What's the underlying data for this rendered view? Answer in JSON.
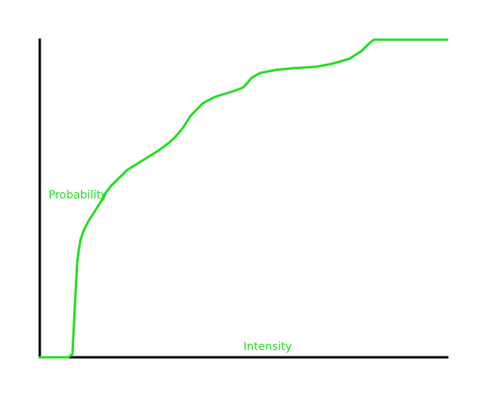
{
  "chart_data": {
    "type": "line",
    "title": "",
    "xlabel": "Intensity",
    "ylabel": "Probability",
    "xlim": [
      0,
      1
    ],
    "ylim": [
      0,
      1
    ],
    "grid": false,
    "series": [
      {
        "color": "#22dd22",
        "x": [
          0.0,
          0.07,
          0.08,
          0.088,
          0.092,
          0.096,
          0.1,
          0.108,
          0.12,
          0.135,
          0.15,
          0.16,
          0.175,
          0.195,
          0.215,
          0.24,
          0.265,
          0.29,
          0.31,
          0.33,
          0.35,
          0.37,
          0.4,
          0.43,
          0.455,
          0.48,
          0.5,
          0.52,
          0.54,
          0.56,
          0.58,
          0.62,
          0.68,
          0.72,
          0.76,
          0.79,
          0.81,
          0.82,
          0.825,
          0.835,
          0.87,
          0.92,
          1.0
        ],
        "y": [
          0.0,
          0.0,
          0.01,
          0.21,
          0.3,
          0.34,
          0.37,
          0.4,
          0.43,
          0.46,
          0.49,
          0.515,
          0.54,
          0.565,
          0.59,
          0.61,
          0.63,
          0.65,
          0.668,
          0.69,
          0.72,
          0.76,
          0.8,
          0.82,
          0.83,
          0.84,
          0.85,
          0.88,
          0.895,
          0.9,
          0.905,
          0.91,
          0.915,
          0.925,
          0.94,
          0.965,
          0.99,
          1.0,
          1.0,
          1.0,
          1.0,
          1.0,
          1.0
        ]
      }
    ]
  }
}
